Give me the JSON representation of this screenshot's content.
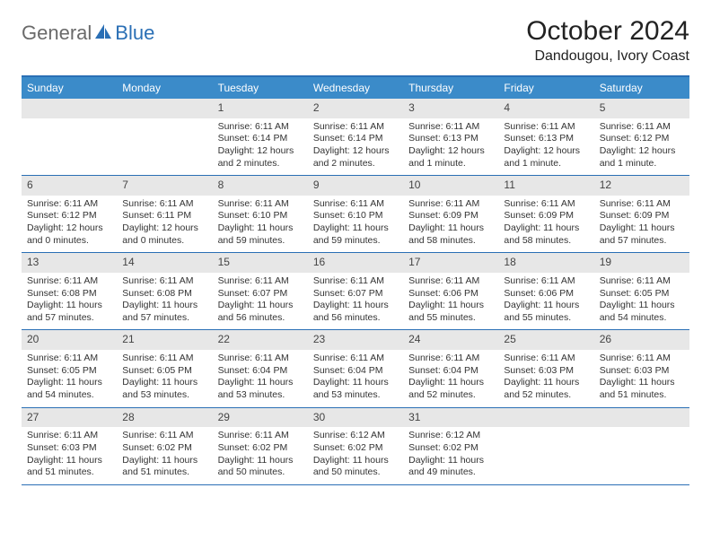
{
  "logo": {
    "text1": "General",
    "text2": "Blue"
  },
  "title": "October 2024",
  "location": "Dandougou, Ivory Coast",
  "colors": {
    "header_bg": "#3b8bc9",
    "border": "#2a6fb5",
    "daynum_bg": "#e7e7e7",
    "text": "#222222"
  },
  "dayheads": [
    "Sunday",
    "Monday",
    "Tuesday",
    "Wednesday",
    "Thursday",
    "Friday",
    "Saturday"
  ],
  "weeks": [
    [
      {
        "n": "",
        "sr": "",
        "ss": "",
        "dl": ""
      },
      {
        "n": "",
        "sr": "",
        "ss": "",
        "dl": ""
      },
      {
        "n": "1",
        "sr": "Sunrise: 6:11 AM",
        "ss": "Sunset: 6:14 PM",
        "dl": "Daylight: 12 hours and 2 minutes."
      },
      {
        "n": "2",
        "sr": "Sunrise: 6:11 AM",
        "ss": "Sunset: 6:14 PM",
        "dl": "Daylight: 12 hours and 2 minutes."
      },
      {
        "n": "3",
        "sr": "Sunrise: 6:11 AM",
        "ss": "Sunset: 6:13 PM",
        "dl": "Daylight: 12 hours and 1 minute."
      },
      {
        "n": "4",
        "sr": "Sunrise: 6:11 AM",
        "ss": "Sunset: 6:13 PM",
        "dl": "Daylight: 12 hours and 1 minute."
      },
      {
        "n": "5",
        "sr": "Sunrise: 6:11 AM",
        "ss": "Sunset: 6:12 PM",
        "dl": "Daylight: 12 hours and 1 minute."
      }
    ],
    [
      {
        "n": "6",
        "sr": "Sunrise: 6:11 AM",
        "ss": "Sunset: 6:12 PM",
        "dl": "Daylight: 12 hours and 0 minutes."
      },
      {
        "n": "7",
        "sr": "Sunrise: 6:11 AM",
        "ss": "Sunset: 6:11 PM",
        "dl": "Daylight: 12 hours and 0 minutes."
      },
      {
        "n": "8",
        "sr": "Sunrise: 6:11 AM",
        "ss": "Sunset: 6:10 PM",
        "dl": "Daylight: 11 hours and 59 minutes."
      },
      {
        "n": "9",
        "sr": "Sunrise: 6:11 AM",
        "ss": "Sunset: 6:10 PM",
        "dl": "Daylight: 11 hours and 59 minutes."
      },
      {
        "n": "10",
        "sr": "Sunrise: 6:11 AM",
        "ss": "Sunset: 6:09 PM",
        "dl": "Daylight: 11 hours and 58 minutes."
      },
      {
        "n": "11",
        "sr": "Sunrise: 6:11 AM",
        "ss": "Sunset: 6:09 PM",
        "dl": "Daylight: 11 hours and 58 minutes."
      },
      {
        "n": "12",
        "sr": "Sunrise: 6:11 AM",
        "ss": "Sunset: 6:09 PM",
        "dl": "Daylight: 11 hours and 57 minutes."
      }
    ],
    [
      {
        "n": "13",
        "sr": "Sunrise: 6:11 AM",
        "ss": "Sunset: 6:08 PM",
        "dl": "Daylight: 11 hours and 57 minutes."
      },
      {
        "n": "14",
        "sr": "Sunrise: 6:11 AM",
        "ss": "Sunset: 6:08 PM",
        "dl": "Daylight: 11 hours and 57 minutes."
      },
      {
        "n": "15",
        "sr": "Sunrise: 6:11 AM",
        "ss": "Sunset: 6:07 PM",
        "dl": "Daylight: 11 hours and 56 minutes."
      },
      {
        "n": "16",
        "sr": "Sunrise: 6:11 AM",
        "ss": "Sunset: 6:07 PM",
        "dl": "Daylight: 11 hours and 56 minutes."
      },
      {
        "n": "17",
        "sr": "Sunrise: 6:11 AM",
        "ss": "Sunset: 6:06 PM",
        "dl": "Daylight: 11 hours and 55 minutes."
      },
      {
        "n": "18",
        "sr": "Sunrise: 6:11 AM",
        "ss": "Sunset: 6:06 PM",
        "dl": "Daylight: 11 hours and 55 minutes."
      },
      {
        "n": "19",
        "sr": "Sunrise: 6:11 AM",
        "ss": "Sunset: 6:05 PM",
        "dl": "Daylight: 11 hours and 54 minutes."
      }
    ],
    [
      {
        "n": "20",
        "sr": "Sunrise: 6:11 AM",
        "ss": "Sunset: 6:05 PM",
        "dl": "Daylight: 11 hours and 54 minutes."
      },
      {
        "n": "21",
        "sr": "Sunrise: 6:11 AM",
        "ss": "Sunset: 6:05 PM",
        "dl": "Daylight: 11 hours and 53 minutes."
      },
      {
        "n": "22",
        "sr": "Sunrise: 6:11 AM",
        "ss": "Sunset: 6:04 PM",
        "dl": "Daylight: 11 hours and 53 minutes."
      },
      {
        "n": "23",
        "sr": "Sunrise: 6:11 AM",
        "ss": "Sunset: 6:04 PM",
        "dl": "Daylight: 11 hours and 53 minutes."
      },
      {
        "n": "24",
        "sr": "Sunrise: 6:11 AM",
        "ss": "Sunset: 6:04 PM",
        "dl": "Daylight: 11 hours and 52 minutes."
      },
      {
        "n": "25",
        "sr": "Sunrise: 6:11 AM",
        "ss": "Sunset: 6:03 PM",
        "dl": "Daylight: 11 hours and 52 minutes."
      },
      {
        "n": "26",
        "sr": "Sunrise: 6:11 AM",
        "ss": "Sunset: 6:03 PM",
        "dl": "Daylight: 11 hours and 51 minutes."
      }
    ],
    [
      {
        "n": "27",
        "sr": "Sunrise: 6:11 AM",
        "ss": "Sunset: 6:03 PM",
        "dl": "Daylight: 11 hours and 51 minutes."
      },
      {
        "n": "28",
        "sr": "Sunrise: 6:11 AM",
        "ss": "Sunset: 6:02 PM",
        "dl": "Daylight: 11 hours and 51 minutes."
      },
      {
        "n": "29",
        "sr": "Sunrise: 6:11 AM",
        "ss": "Sunset: 6:02 PM",
        "dl": "Daylight: 11 hours and 50 minutes."
      },
      {
        "n": "30",
        "sr": "Sunrise: 6:12 AM",
        "ss": "Sunset: 6:02 PM",
        "dl": "Daylight: 11 hours and 50 minutes."
      },
      {
        "n": "31",
        "sr": "Sunrise: 6:12 AM",
        "ss": "Sunset: 6:02 PM",
        "dl": "Daylight: 11 hours and 49 minutes."
      },
      {
        "n": "",
        "sr": "",
        "ss": "",
        "dl": ""
      },
      {
        "n": "",
        "sr": "",
        "ss": "",
        "dl": ""
      }
    ]
  ]
}
